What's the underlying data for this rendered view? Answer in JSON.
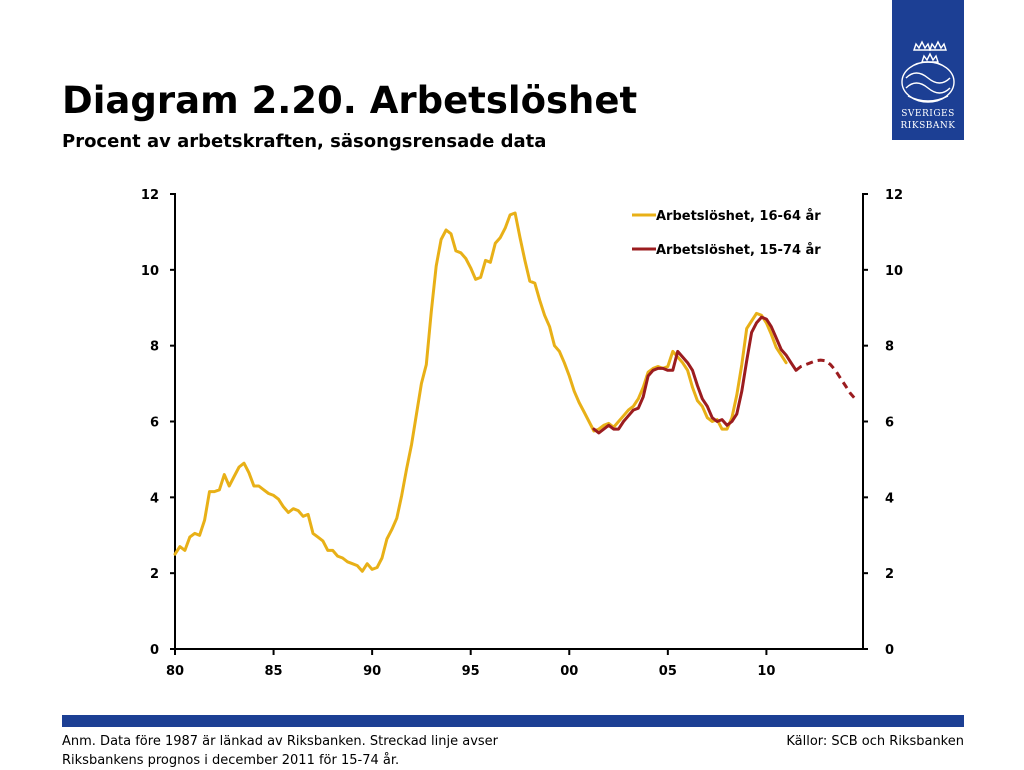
{
  "logo": {
    "line1": "SVERIGES",
    "line2": "RIKSBANK"
  },
  "title": "Diagram 2.20. Arbetslöshet",
  "subtitle": "Procent av arbetskraften, säsongsrensade data",
  "footer": {
    "note": "Anm. Data före 1987 är länkad av Riksbanken. Streckad linje avser Riksbankens prognos i december 2011 för 15-74 år.",
    "sources": "Källor: SCB och Riksbanken"
  },
  "colors": {
    "brand": "#1c3f94",
    "series1": "#e8b017",
    "series2": "#9b1c1f"
  },
  "chart_data": {
    "type": "line",
    "title": "",
    "xlabel": "",
    "ylabel": "",
    "xlim": [
      1980,
      2014.9
    ],
    "ylim": [
      0,
      12
    ],
    "y_ticks": [
      0,
      2,
      4,
      6,
      8,
      10,
      12
    ],
    "x_ticks": [
      {
        "value": 1980,
        "label": "80"
      },
      {
        "value": 1985,
        "label": "85"
      },
      {
        "value": 1990,
        "label": "90"
      },
      {
        "value": 1995,
        "label": "95"
      },
      {
        "value": 2000,
        "label": "00"
      },
      {
        "value": 2005,
        "label": "05"
      },
      {
        "value": 2010,
        "label": "10"
      }
    ],
    "grid": false,
    "legend_position": "top-right",
    "dual_y_axis": true,
    "series": [
      {
        "name": "Arbetslöshet, 16-64 år",
        "color": "#e8b017",
        "style": "solid",
        "points": [
          [
            1980.0,
            2.5
          ],
          [
            1980.25,
            2.7
          ],
          [
            1980.5,
            2.6
          ],
          [
            1980.75,
            2.95
          ],
          [
            1981.0,
            3.05
          ],
          [
            1981.25,
            3.0
          ],
          [
            1981.5,
            3.4
          ],
          [
            1981.75,
            4.15
          ],
          [
            1982.0,
            4.15
          ],
          [
            1982.25,
            4.2
          ],
          [
            1982.5,
            4.6
          ],
          [
            1982.75,
            4.3
          ],
          [
            1983.0,
            4.55
          ],
          [
            1983.25,
            4.8
          ],
          [
            1983.5,
            4.9
          ],
          [
            1983.75,
            4.65
          ],
          [
            1984.0,
            4.3
          ],
          [
            1984.25,
            4.3
          ],
          [
            1984.5,
            4.2
          ],
          [
            1984.75,
            4.1
          ],
          [
            1985.0,
            4.05
          ],
          [
            1985.25,
            3.95
          ],
          [
            1985.5,
            3.75
          ],
          [
            1985.75,
            3.6
          ],
          [
            1986.0,
            3.7
          ],
          [
            1986.25,
            3.65
          ],
          [
            1986.5,
            3.5
          ],
          [
            1986.75,
            3.55
          ],
          [
            1987.0,
            3.05
          ],
          [
            1987.25,
            2.95
          ],
          [
            1987.5,
            2.85
          ],
          [
            1987.75,
            2.6
          ],
          [
            1988.0,
            2.6
          ],
          [
            1988.25,
            2.45
          ],
          [
            1988.5,
            2.4
          ],
          [
            1988.75,
            2.3
          ],
          [
            1989.0,
            2.25
          ],
          [
            1989.25,
            2.2
          ],
          [
            1989.5,
            2.05
          ],
          [
            1989.75,
            2.25
          ],
          [
            1990.0,
            2.1
          ],
          [
            1990.25,
            2.15
          ],
          [
            1990.5,
            2.4
          ],
          [
            1990.75,
            2.9
          ],
          [
            1991.0,
            3.15
          ],
          [
            1991.25,
            3.45
          ],
          [
            1991.5,
            4.05
          ],
          [
            1991.75,
            4.75
          ],
          [
            1992.0,
            5.4
          ],
          [
            1992.25,
            6.2
          ],
          [
            1992.5,
            7.0
          ],
          [
            1992.75,
            7.5
          ],
          [
            1993.0,
            8.9
          ],
          [
            1993.25,
            10.1
          ],
          [
            1993.5,
            10.8
          ],
          [
            1993.75,
            11.05
          ],
          [
            1994.0,
            10.95
          ],
          [
            1994.25,
            10.5
          ],
          [
            1994.5,
            10.45
          ],
          [
            1994.75,
            10.3
          ],
          [
            1995.0,
            10.05
          ],
          [
            1995.25,
            9.75
          ],
          [
            1995.5,
            9.8
          ],
          [
            1995.75,
            10.25
          ],
          [
            1996.0,
            10.2
          ],
          [
            1996.25,
            10.7
          ],
          [
            1996.5,
            10.85
          ],
          [
            1996.75,
            11.1
          ],
          [
            1997.0,
            11.45
          ],
          [
            1997.25,
            11.5
          ],
          [
            1997.5,
            10.85
          ],
          [
            1997.75,
            10.25
          ],
          [
            1998.0,
            9.7
          ],
          [
            1998.25,
            9.65
          ],
          [
            1998.5,
            9.2
          ],
          [
            1998.75,
            8.8
          ],
          [
            1999.0,
            8.5
          ],
          [
            1999.25,
            8.0
          ],
          [
            1999.5,
            7.85
          ],
          [
            1999.75,
            7.55
          ],
          [
            2000.0,
            7.2
          ],
          [
            2000.25,
            6.8
          ],
          [
            2000.5,
            6.5
          ],
          [
            2000.75,
            6.25
          ],
          [
            2001.0,
            6.0
          ],
          [
            2001.25,
            5.75
          ],
          [
            2001.5,
            5.8
          ],
          [
            2001.75,
            5.9
          ],
          [
            2002.0,
            5.95
          ],
          [
            2002.25,
            5.85
          ],
          [
            2002.5,
            6.0
          ],
          [
            2002.75,
            6.15
          ],
          [
            2003.0,
            6.3
          ],
          [
            2003.25,
            6.4
          ],
          [
            2003.5,
            6.6
          ],
          [
            2003.75,
            6.9
          ],
          [
            2004.0,
            7.3
          ],
          [
            2004.25,
            7.4
          ],
          [
            2004.5,
            7.45
          ],
          [
            2004.75,
            7.4
          ],
          [
            2005.0,
            7.45
          ],
          [
            2005.25,
            7.85
          ],
          [
            2005.5,
            7.7
          ],
          [
            2005.75,
            7.55
          ],
          [
            2006.0,
            7.35
          ],
          [
            2006.25,
            6.9
          ],
          [
            2006.5,
            6.55
          ],
          [
            2006.75,
            6.4
          ],
          [
            2007.0,
            6.1
          ],
          [
            2007.25,
            6.0
          ],
          [
            2007.5,
            6.05
          ],
          [
            2007.75,
            5.8
          ],
          [
            2008.0,
            5.8
          ],
          [
            2008.25,
            6.1
          ],
          [
            2008.5,
            6.7
          ],
          [
            2008.75,
            7.5
          ],
          [
            2009.0,
            8.45
          ],
          [
            2009.25,
            8.65
          ],
          [
            2009.5,
            8.85
          ],
          [
            2009.75,
            8.8
          ],
          [
            2010.0,
            8.6
          ],
          [
            2010.25,
            8.3
          ],
          [
            2010.5,
            7.95
          ],
          [
            2010.75,
            7.75
          ],
          [
            2011.0,
            7.55
          ]
        ]
      },
      {
        "name": "Arbetslöshet, 15-74 år",
        "color": "#9b1c1f",
        "style": "solid",
        "points": [
          [
            2001.25,
            5.8
          ],
          [
            2001.5,
            5.7
          ],
          [
            2001.75,
            5.8
          ],
          [
            2002.0,
            5.9
          ],
          [
            2002.25,
            5.8
          ],
          [
            2002.5,
            5.8
          ],
          [
            2002.75,
            6.0
          ],
          [
            2003.0,
            6.15
          ],
          [
            2003.25,
            6.3
          ],
          [
            2003.5,
            6.35
          ],
          [
            2003.75,
            6.65
          ],
          [
            2004.0,
            7.2
          ],
          [
            2004.25,
            7.35
          ],
          [
            2004.5,
            7.4
          ],
          [
            2004.75,
            7.4
          ],
          [
            2005.0,
            7.35
          ],
          [
            2005.25,
            7.35
          ],
          [
            2005.5,
            7.85
          ],
          [
            2005.75,
            7.7
          ],
          [
            2006.0,
            7.55
          ],
          [
            2006.25,
            7.35
          ],
          [
            2006.5,
            6.95
          ],
          [
            2006.75,
            6.6
          ],
          [
            2007.0,
            6.4
          ],
          [
            2007.25,
            6.1
          ],
          [
            2007.5,
            6.0
          ],
          [
            2007.75,
            6.05
          ],
          [
            2008.0,
            5.9
          ],
          [
            2008.25,
            6.0
          ],
          [
            2008.5,
            6.2
          ],
          [
            2008.75,
            6.8
          ],
          [
            2009.0,
            7.6
          ],
          [
            2009.25,
            8.35
          ],
          [
            2009.5,
            8.6
          ],
          [
            2009.75,
            8.75
          ],
          [
            2010.0,
            8.7
          ],
          [
            2010.25,
            8.5
          ],
          [
            2010.5,
            8.2
          ],
          [
            2010.75,
            7.9
          ],
          [
            2011.0,
            7.75
          ],
          [
            2011.25,
            7.55
          ],
          [
            2011.5,
            7.35
          ]
        ]
      },
      {
        "name": "",
        "color": "#9b1c1f",
        "style": "dashed",
        "points": [
          [
            2011.5,
            7.35
          ],
          [
            2011.75,
            7.45
          ],
          [
            2012.0,
            7.5
          ],
          [
            2012.25,
            7.55
          ],
          [
            2012.5,
            7.6
          ],
          [
            2012.75,
            7.62
          ],
          [
            2013.0,
            7.6
          ],
          [
            2013.25,
            7.5
          ],
          [
            2013.5,
            7.35
          ],
          [
            2013.75,
            7.15
          ],
          [
            2014.0,
            6.95
          ],
          [
            2014.25,
            6.75
          ],
          [
            2014.5,
            6.6
          ]
        ]
      }
    ]
  }
}
